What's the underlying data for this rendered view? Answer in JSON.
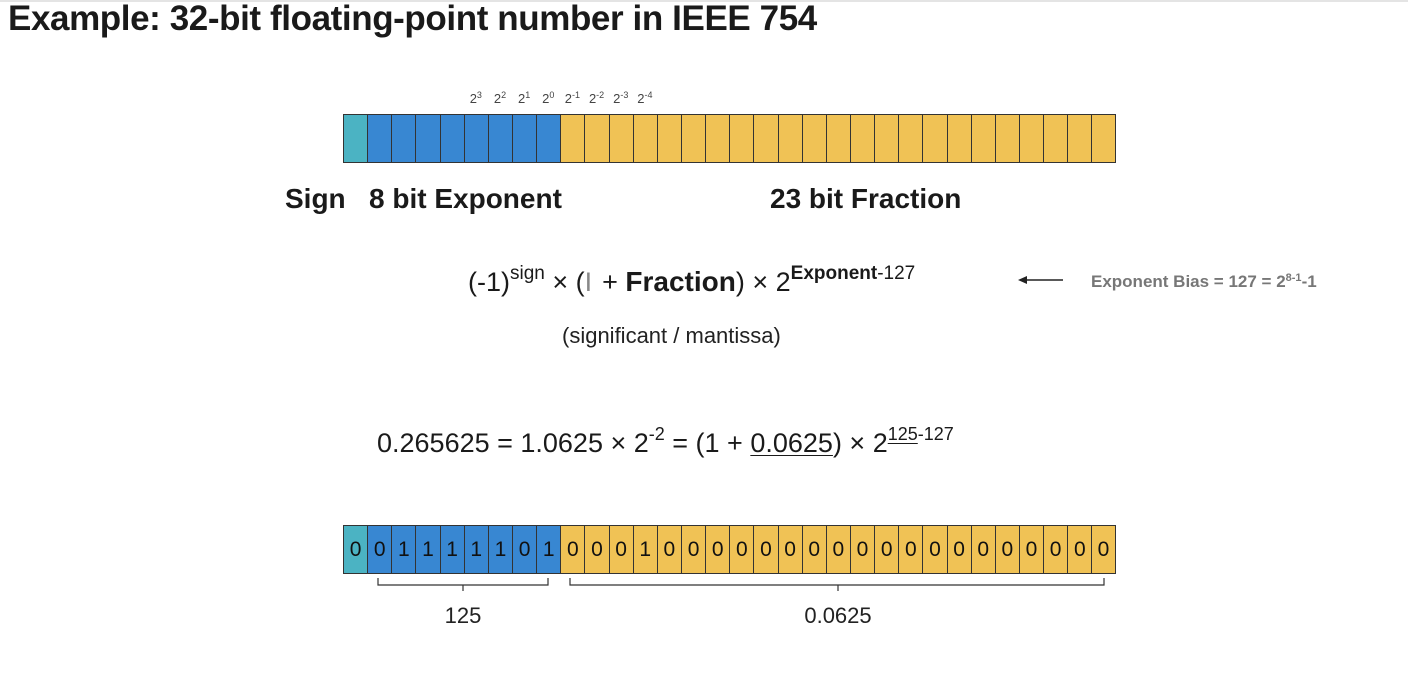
{
  "title": "Example: 32-bit floating-point number in IEEE 754",
  "layout_top": {
    "sign_bits": 1,
    "exponent_bits": 8,
    "fraction_bits": 23,
    "powers": [
      {
        "base": "2",
        "exp": "3"
      },
      {
        "base": "2",
        "exp": "2"
      },
      {
        "base": "2",
        "exp": "1"
      },
      {
        "base": "2",
        "exp": "0"
      },
      {
        "base": "2",
        "exp": "-1"
      },
      {
        "base": "2",
        "exp": "-2"
      },
      {
        "base": "2",
        "exp": "-3"
      },
      {
        "base": "2",
        "exp": "-4"
      }
    ]
  },
  "labels": {
    "sign": "Sign",
    "exponent": "8 bit Exponent",
    "fraction": "23 bit Fraction"
  },
  "formula": {
    "neg": "(-1)",
    "sign_sup": "sign",
    "times1": " × (",
    "cursor": "I",
    "plus": " + ",
    "fraction": "Fraction",
    "close": ") × 2",
    "exp_bold": "Exponent",
    "exp_rest": "-127"
  },
  "bias": {
    "text": "Exponent Bias = 127 = 2",
    "sup": "8-1",
    "rest": "-1"
  },
  "significant_note": "(significant / mantissa)",
  "example": {
    "lhs": "0.265625 = 1.0625 × 2",
    "sup1": "-2",
    "mid": " = (1 + ",
    "frac": "0.0625",
    "close": ") × 2",
    "sup_exp": "125",
    "sup_rest": "-127"
  },
  "bits_values": [
    "0",
    "0",
    "1",
    "1",
    "1",
    "1",
    "1",
    "0",
    "1",
    "0",
    "0",
    "0",
    "1",
    "0",
    "0",
    "0",
    "0",
    "0",
    "0",
    "0",
    "0",
    "0",
    "0",
    "0",
    "0",
    "0",
    "0",
    "0",
    "0",
    "0",
    "0",
    "0"
  ],
  "brace_labels": {
    "exponent": "125",
    "fraction": "0.0625"
  },
  "colors": {
    "sign": "#4bb3c3",
    "exponent": "#3887d2",
    "fraction": "#f0c255"
  }
}
